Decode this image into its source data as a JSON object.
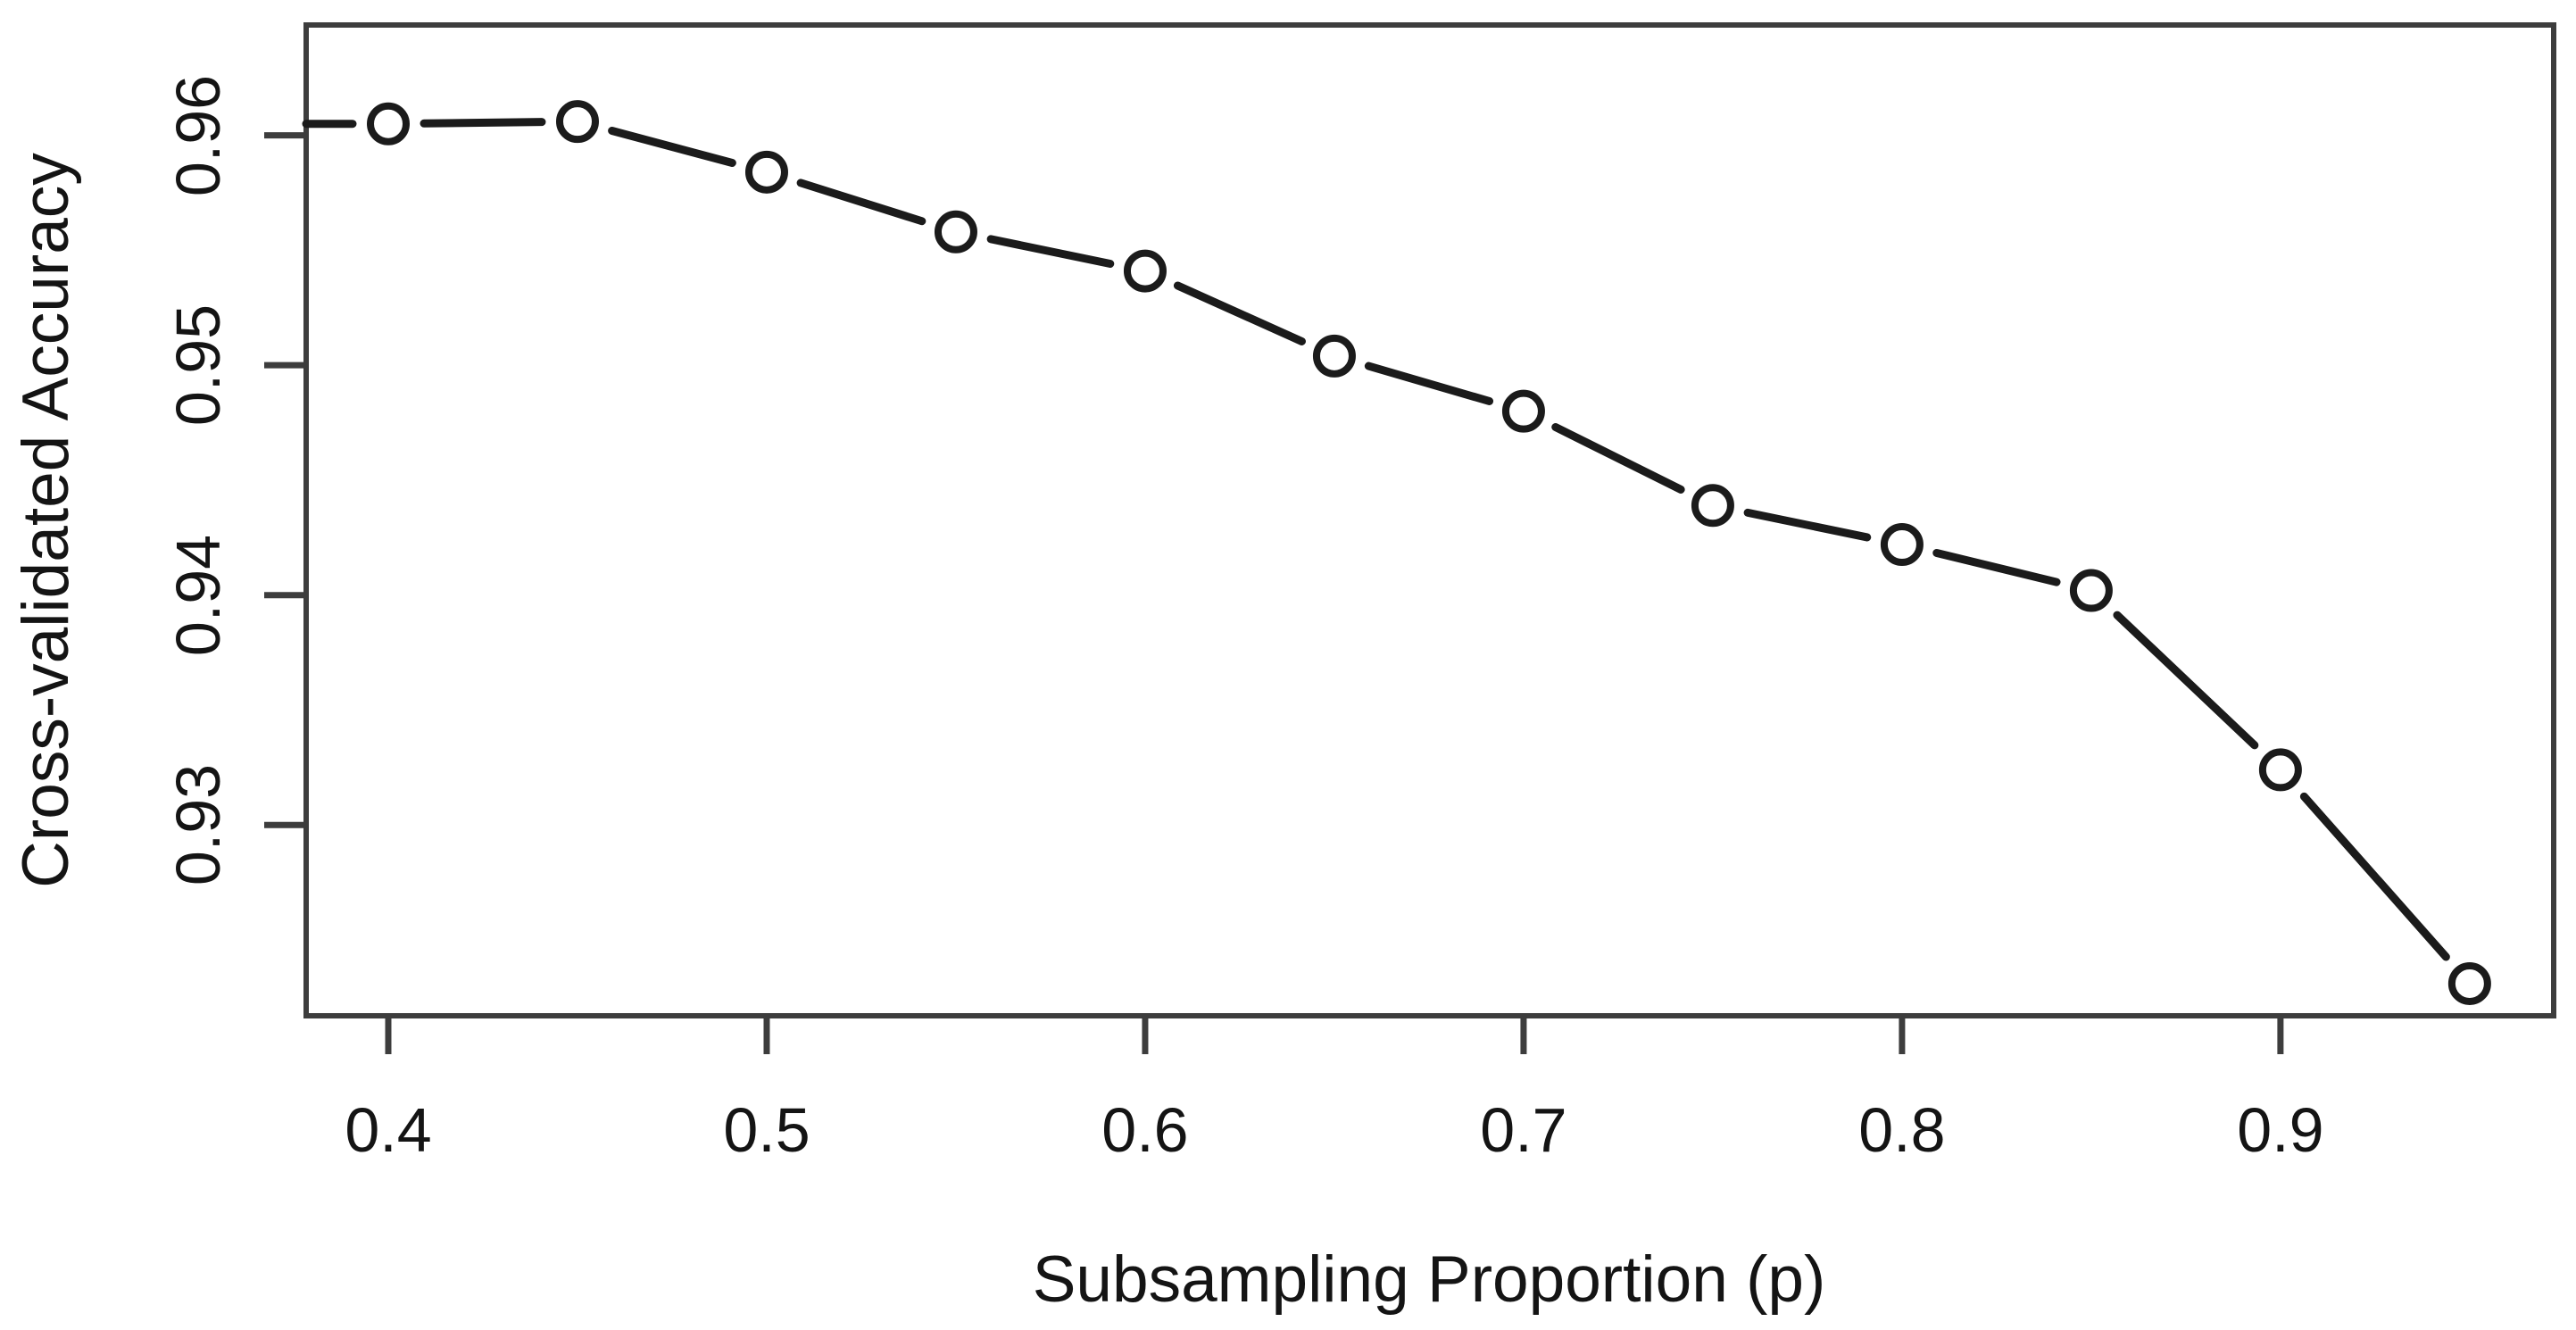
{
  "chart_data": {
    "type": "line",
    "title": "",
    "xlabel": "Subsampling Proportion (p)",
    "ylabel": "Cross-validated Accuracy",
    "x": [
      0.4,
      0.45,
      0.5,
      0.55,
      0.6,
      0.65,
      0.7,
      0.75,
      0.8,
      0.85,
      0.9,
      0.95
    ],
    "y": [
      0.9605,
      0.9606,
      0.9584,
      0.9558,
      0.9541,
      0.9504,
      0.948,
      0.9439,
      0.9422,
      0.9402,
      0.9324,
      0.9231
    ],
    "x_ticks": [
      0.4,
      0.5,
      0.6,
      0.7,
      0.8,
      0.9
    ],
    "x_tick_labels": [
      "0.4",
      "0.5",
      "0.6",
      "0.7",
      "0.8",
      "0.9"
    ],
    "y_ticks": [
      0.96,
      0.95,
      0.94,
      0.93
    ],
    "y_tick_labels": [
      "0.96",
      "0.95",
      "0.94",
      "0.93"
    ],
    "x_range": [
      0.3783,
      0.9722
    ],
    "y_range": [
      0.9217,
      0.9648
    ],
    "grid": false,
    "legend": null,
    "marker": "open-circle",
    "line_style": "segments-with-gaps-around-markers",
    "line_enters_from_left_border": true,
    "line_color": "#1b1b1b",
    "marker_color": "#1b1b1b",
    "axis_color": "#3d3d3d",
    "text_color": "#141414",
    "background": "#ffffff"
  }
}
